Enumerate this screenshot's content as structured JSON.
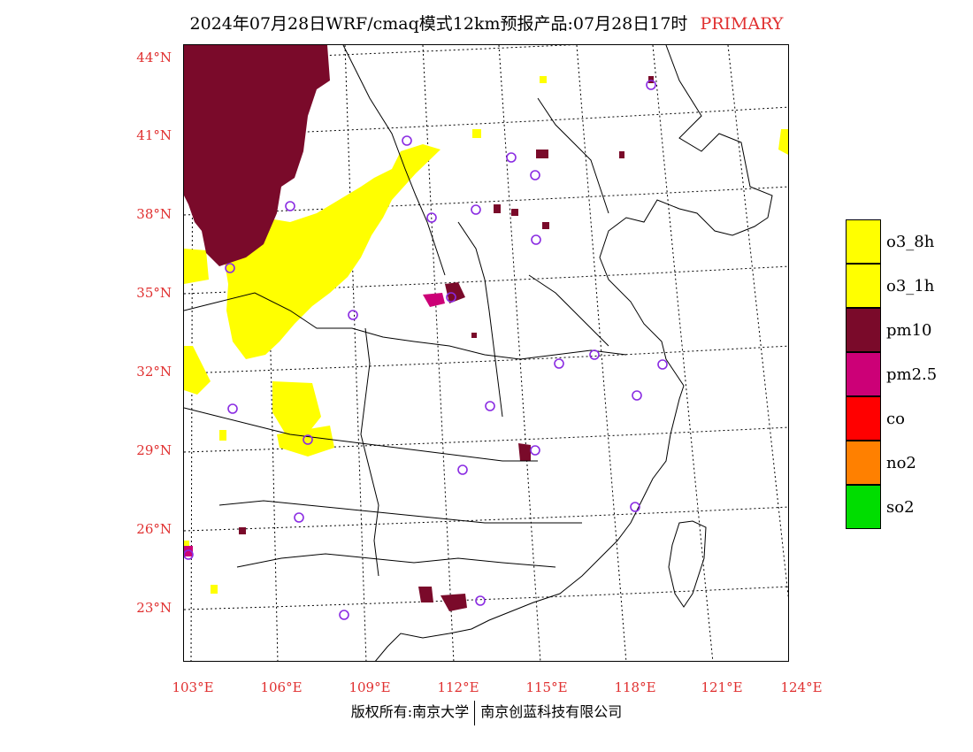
{
  "title": {
    "text": "2024年07月28日WRF/cmaq模式12km预报产品:07月28日17时",
    "tag": "PRIMARY"
  },
  "axes": {
    "lat_labels": [
      "44°N",
      "41°N",
      "38°N",
      "35°N",
      "32°N",
      "29°N",
      "26°N",
      "23°N"
    ],
    "lon_labels": [
      "103°E",
      "106°E",
      "109°E",
      "112°E",
      "115°E",
      "118°E",
      "121°E",
      "124°E"
    ]
  },
  "legend": {
    "items": [
      {
        "label": "o3_8h",
        "color": "#ffff00"
      },
      {
        "label": "o3_1h",
        "color": "#ffff00"
      },
      {
        "label": "pm10",
        "color": "#7a0a2a"
      },
      {
        "label": "pm2.5",
        "color": "#cc0077"
      },
      {
        "label": "co",
        "color": "#ff0000"
      },
      {
        "label": "no2",
        "color": "#ff8000"
      },
      {
        "label": "so2",
        "color": "#00dd00"
      }
    ]
  },
  "footer": {
    "left": "版权所有:南京大学",
    "right": "南京创蓝科技有限公司"
  },
  "colors": {
    "label_red": "#e03030",
    "station_circle": "#8a2be2"
  }
}
